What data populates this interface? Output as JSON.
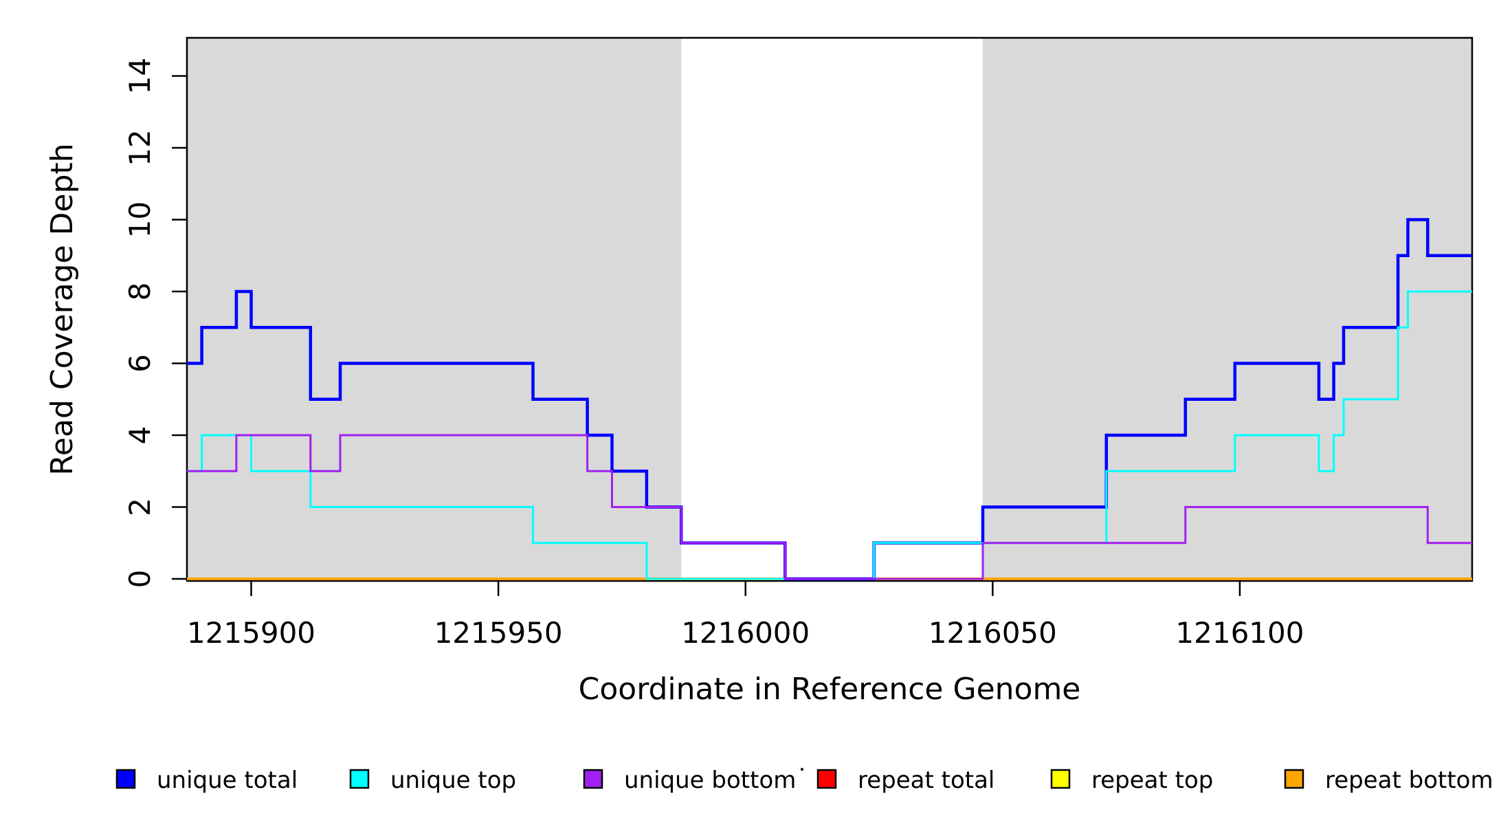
{
  "figure": {
    "background": "#ffffff",
    "shaded_region_color": "#d9d9d9",
    "axis_color": "#000000"
  },
  "chart_data": {
    "type": "line",
    "subtype": "step",
    "title": "",
    "xlabel": "Coordinate in Reference Genome",
    "ylabel": "Read Coverage Depth",
    "xlim": [
      1215887,
      1216147
    ],
    "ylim": [
      0,
      15.1
    ],
    "x_ticks": [
      1215900,
      1215950,
      1216000,
      1216050,
      1216100
    ],
    "y_ticks": [
      0,
      2,
      4,
      6,
      8,
      10,
      12,
      14
    ],
    "grid": false,
    "legend_position": "bottom",
    "shaded_regions": [
      {
        "x_start": 1215887,
        "x_end": 1215987
      },
      {
        "x_start": 1216048,
        "x_end": 1216147
      }
    ],
    "series_end_x": 1216147,
    "series": [
      {
        "name": "repeat total",
        "color": "#ff0000",
        "width": 3,
        "points": [
          [
            1215887,
            0
          ]
        ]
      },
      {
        "name": "repeat top",
        "color": "#ffff00",
        "width": 3,
        "points": [
          [
            1215887,
            0
          ]
        ]
      },
      {
        "name": "repeat bottom",
        "color": "#ffa500",
        "width": 4,
        "points": [
          [
            1215887,
            0
          ]
        ]
      },
      {
        "name": "unique total",
        "color": "#0000ff",
        "width": 4.5,
        "points": [
          [
            1215887,
            6
          ],
          [
            1215890,
            7
          ],
          [
            1215897,
            8
          ],
          [
            1215900,
            7
          ],
          [
            1215912,
            5
          ],
          [
            1215918,
            6
          ],
          [
            1215957,
            5
          ],
          [
            1215968,
            4
          ],
          [
            1215973,
            3
          ],
          [
            1215980,
            2
          ],
          [
            1215987,
            1
          ],
          [
            1216008,
            0
          ],
          [
            1216026,
            1
          ],
          [
            1216048,
            2
          ],
          [
            1216073,
            4
          ],
          [
            1216089,
            5
          ],
          [
            1216099,
            6
          ],
          [
            1216116,
            5
          ],
          [
            1216119,
            6
          ],
          [
            1216121,
            7
          ],
          [
            1216132,
            9
          ],
          [
            1216134,
            10
          ],
          [
            1216138,
            9
          ]
        ]
      },
      {
        "name": "unique top",
        "color": "#00ffff",
        "width": 3,
        "points": [
          [
            1215887,
            3
          ],
          [
            1215890,
            4
          ],
          [
            1215900,
            3
          ],
          [
            1215912,
            2
          ],
          [
            1215957,
            1
          ],
          [
            1215980,
            0
          ],
          [
            1216026,
            1
          ],
          [
            1216073,
            3
          ],
          [
            1216099,
            4
          ],
          [
            1216116,
            3
          ],
          [
            1216119,
            4
          ],
          [
            1216121,
            5
          ],
          [
            1216132,
            7
          ],
          [
            1216134,
            8
          ]
        ]
      },
      {
        "name": "unique bottom",
        "color": "#a020f0",
        "width": 3,
        "points": [
          [
            1215887,
            3
          ],
          [
            1215897,
            4
          ],
          [
            1215912,
            3
          ],
          [
            1215918,
            4
          ],
          [
            1215968,
            3
          ],
          [
            1215973,
            2
          ],
          [
            1215987,
            1
          ],
          [
            1216008,
            0
          ],
          [
            1216048,
            1
          ],
          [
            1216089,
            2
          ],
          [
            1216138,
            1
          ]
        ]
      }
    ]
  },
  "legend": {
    "items": [
      {
        "label": "unique total",
        "color": "#0000ff"
      },
      {
        "label": "unique top",
        "color": "#00ffff"
      },
      {
        "label": "unique bottom",
        "color": "#a020f0"
      },
      {
        "label": "repeat total",
        "color": "#ff0000"
      },
      {
        "label": "repeat top",
        "color": "#ffff00"
      },
      {
        "label": "repeat bottom",
        "color": "#ffa500"
      }
    ]
  }
}
